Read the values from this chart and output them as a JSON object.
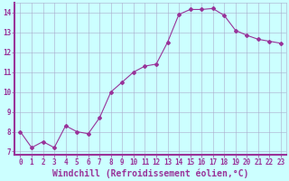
{
  "x": [
    0,
    1,
    2,
    3,
    4,
    5,
    6,
    7,
    8,
    9,
    10,
    11,
    12,
    13,
    14,
    15,
    16,
    17,
    18,
    19,
    20,
    21,
    22,
    23
  ],
  "y": [
    8.0,
    7.2,
    7.5,
    7.2,
    8.3,
    8.0,
    7.9,
    8.7,
    10.0,
    10.5,
    11.0,
    11.3,
    11.4,
    12.5,
    13.9,
    14.15,
    14.15,
    14.2,
    13.85,
    13.1,
    12.85,
    12.65,
    12.55,
    12.45
  ],
  "line_color": "#993399",
  "marker": "D",
  "marker_size": 2.0,
  "bg_color": "#ccffff",
  "grid_color": "#aaaacc",
  "border_color": "#993399",
  "xlabel": "Windchill (Refroidissement éolien,°C)",
  "ylim": [
    6.85,
    14.5
  ],
  "xlim": [
    -0.5,
    23.5
  ],
  "yticks": [
    7,
    8,
    9,
    10,
    11,
    12,
    13,
    14
  ],
  "xticks": [
    0,
    1,
    2,
    3,
    4,
    5,
    6,
    7,
    8,
    9,
    10,
    11,
    12,
    13,
    14,
    15,
    16,
    17,
    18,
    19,
    20,
    21,
    22,
    23
  ],
  "tick_color": "#993399",
  "tick_fontsize": 5.5,
  "xlabel_fontsize": 7.0,
  "xlabel_color": "#993399",
  "line_width": 0.8
}
